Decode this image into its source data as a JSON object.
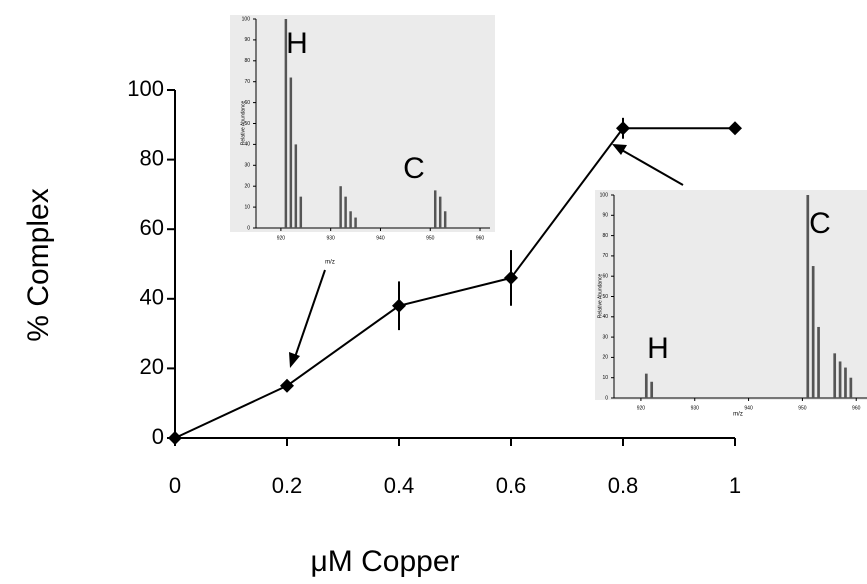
{
  "chart_data": [
    {
      "type": "line",
      "x_label": "μM Copper",
      "y_label": "% Complex",
      "x": [
        0,
        0.2,
        0.4,
        0.6,
        0.8,
        1
      ],
      "series": [
        {
          "color": "#000000",
          "values": [
            0,
            15,
            38,
            46,
            89,
            89
          ],
          "errors": [
            0,
            1,
            7,
            8,
            3,
            1
          ]
        }
      ],
      "xlim": [
        0,
        1
      ],
      "xticks": [
        0,
        0.2,
        0.4,
        0.6,
        0.8,
        1
      ],
      "ylim": [
        0,
        100
      ],
      "yticks": [
        0,
        20,
        40,
        60,
        80,
        100
      ]
    },
    {
      "type": "bar",
      "x_label": "m/z",
      "y_label": "Relative Abundance",
      "peak_labels": [
        "H",
        "C"
      ],
      "color": "#555555",
      "x": [
        921,
        922,
        923,
        924,
        932,
        933,
        934,
        935,
        951,
        952,
        953
      ],
      "values": [
        100,
        72,
        40,
        15,
        20,
        15,
        8,
        5,
        18,
        15,
        8
      ],
      "xlim": [
        915,
        962
      ],
      "xticks": [
        920,
        930,
        940,
        950,
        960
      ],
      "ylim": [
        0,
        100
      ],
      "yticks": [
        0,
        10,
        20,
        30,
        40,
        50,
        60,
        70,
        80,
        90,
        100
      ]
    },
    {
      "type": "bar",
      "x_label": "m/z",
      "y_label": "Relative Abundance",
      "peak_labels": [
        "C",
        "H"
      ],
      "color": "#555555",
      "x": [
        921,
        922,
        951,
        952,
        953,
        956,
        957,
        958,
        959
      ],
      "values": [
        12,
        8,
        100,
        65,
        35,
        22,
        18,
        15,
        10
      ],
      "xlim": [
        915,
        962
      ],
      "xticks": [
        920,
        930,
        940,
        950,
        960
      ],
      "ylim": [
        0,
        100
      ],
      "yticks": [
        0,
        10,
        20,
        30,
        40,
        50,
        60,
        70,
        80,
        90,
        100
      ]
    }
  ]
}
